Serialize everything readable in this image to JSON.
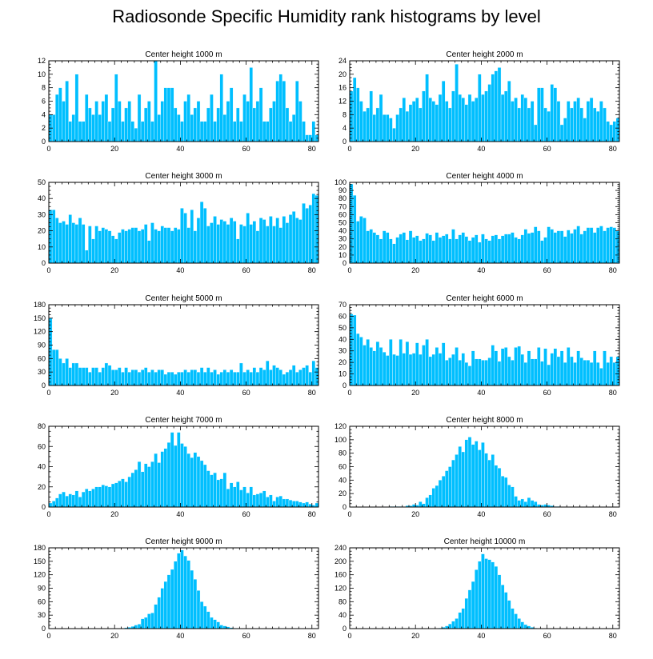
{
  "title": "Radiosonde Specific Humidity rank histograms by level",
  "bar_color": "#00BFFF",
  "chart_data": [
    {
      "type": "bar",
      "title": "Center height 1000 m",
      "x_start": 0,
      "xlim": [
        0,
        82
      ],
      "x_ticks": [
        0,
        20,
        40,
        60,
        80
      ],
      "ylim": [
        0,
        12
      ],
      "y_ticks": [
        0,
        2,
        4,
        6,
        8,
        10,
        12
      ],
      "values": [
        4,
        4,
        7,
        8,
        6,
        9,
        3,
        4,
        10,
        3,
        3,
        7,
        5,
        4,
        6,
        4,
        6,
        7,
        3,
        5,
        10,
        6,
        3,
        5,
        6,
        3,
        2,
        7,
        3,
        5,
        6,
        3,
        12,
        4,
        6,
        8,
        8,
        8,
        5,
        4,
        3,
        6,
        7,
        4,
        5,
        6,
        3,
        3,
        5,
        7,
        3,
        5,
        10,
        4,
        6,
        8,
        3,
        5,
        3,
        7,
        6,
        11,
        5,
        6,
        8,
        3,
        3,
        5,
        6,
        9,
        10,
        9,
        5,
        3,
        4,
        9,
        6,
        3,
        1,
        1,
        3,
        1
      ]
    },
    {
      "type": "bar",
      "title": "Center height 2000 m",
      "x_start": 0,
      "xlim": [
        0,
        82
      ],
      "x_ticks": [
        0,
        20,
        40,
        60,
        80
      ],
      "ylim": [
        0,
        24
      ],
      "y_ticks": [
        0,
        4,
        8,
        12,
        16,
        20,
        24
      ],
      "values": [
        15,
        19,
        16,
        12,
        9,
        10,
        15,
        8,
        10,
        14,
        8,
        8,
        7,
        4,
        8,
        10,
        13,
        9,
        11,
        12,
        13,
        10,
        15,
        20,
        13,
        12,
        11,
        14,
        18,
        12,
        10,
        15,
        23,
        14,
        13,
        11,
        14,
        12,
        13,
        20,
        14,
        15,
        17,
        20,
        21,
        22,
        14,
        15,
        18,
        12,
        13,
        10,
        14,
        13,
        10,
        12,
        5,
        16,
        16,
        10,
        9,
        17,
        16,
        12,
        5,
        7,
        12,
        10,
        12,
        13,
        10,
        7,
        12,
        13,
        10,
        9,
        12,
        10,
        6,
        5,
        6,
        7
      ]
    },
    {
      "type": "bar",
      "title": "Center height 3000 m",
      "x_start": 0,
      "xlim": [
        0,
        82
      ],
      "x_ticks": [
        0,
        20,
        40,
        60,
        80
      ],
      "ylim": [
        0,
        50
      ],
      "y_ticks": [
        0,
        10,
        20,
        30,
        40,
        50
      ],
      "values": [
        33,
        33,
        28,
        25,
        26,
        24,
        30,
        25,
        24,
        28,
        24,
        8,
        23,
        15,
        23,
        20,
        22,
        21,
        20,
        17,
        15,
        19,
        21,
        20,
        21,
        22,
        22,
        20,
        21,
        24,
        14,
        25,
        21,
        20,
        23,
        22,
        22,
        20,
        22,
        21,
        34,
        31,
        22,
        33,
        20,
        28,
        38,
        34,
        23,
        25,
        29,
        24,
        27,
        26,
        24,
        28,
        26,
        15,
        24,
        23,
        31,
        24,
        26,
        20,
        28,
        27,
        23,
        29,
        23,
        28,
        22,
        29,
        25,
        30,
        32,
        28,
        27,
        37,
        34,
        36,
        43,
        42
      ]
    },
    {
      "type": "bar",
      "title": "Center height 4000 m",
      "x_start": 0,
      "xlim": [
        0,
        82
      ],
      "x_ticks": [
        0,
        20,
        40,
        60,
        80
      ],
      "ylim": [
        0,
        100
      ],
      "y_ticks": [
        0,
        10,
        20,
        30,
        40,
        50,
        60,
        70,
        80,
        90,
        100
      ],
      "values": [
        98,
        84,
        52,
        58,
        56,
        40,
        42,
        38,
        35,
        30,
        40,
        38,
        30,
        24,
        32,
        36,
        38,
        29,
        40,
        32,
        34,
        28,
        30,
        37,
        35,
        28,
        38,
        32,
        34,
        36,
        30,
        42,
        30,
        35,
        38,
        33,
        28,
        32,
        35,
        26,
        36,
        30,
        28,
        34,
        35,
        30,
        34,
        36,
        36,
        38,
        32,
        30,
        35,
        42,
        37,
        38,
        45,
        40,
        28,
        32,
        45,
        42,
        38,
        40,
        40,
        33,
        41,
        37,
        42,
        46,
        36,
        40,
        44,
        44,
        38,
        44,
        46,
        40,
        44,
        45,
        44,
        40
      ]
    },
    {
      "type": "bar",
      "title": "Center height 5000 m",
      "x_start": 0,
      "xlim": [
        0,
        82
      ],
      "x_ticks": [
        0,
        20,
        40,
        60,
        80
      ],
      "ylim": [
        0,
        180
      ],
      "y_ticks": [
        0,
        30,
        60,
        90,
        120,
        150,
        180
      ],
      "values": [
        150,
        80,
        80,
        60,
        50,
        60,
        40,
        50,
        50,
        40,
        40,
        40,
        30,
        40,
        40,
        30,
        40,
        50,
        45,
        35,
        35,
        40,
        30,
        40,
        30,
        35,
        35,
        30,
        35,
        40,
        30,
        35,
        30,
        35,
        35,
        25,
        30,
        30,
        25,
        30,
        30,
        35,
        30,
        35,
        35,
        30,
        40,
        30,
        40,
        30,
        35,
        25,
        30,
        35,
        30,
        35,
        30,
        30,
        50,
        30,
        35,
        30,
        40,
        30,
        40,
        35,
        55,
        35,
        45,
        40,
        35,
        25,
        30,
        35,
        45,
        30,
        35,
        40,
        45,
        30,
        55,
        40
      ]
    },
    {
      "type": "bar",
      "title": "Center height 6000 m",
      "x_start": 0,
      "xlim": [
        0,
        82
      ],
      "x_ticks": [
        0,
        20,
        40,
        60,
        80
      ],
      "ylim": [
        0,
        70
      ],
      "y_ticks": [
        0,
        10,
        20,
        30,
        40,
        50,
        60,
        70
      ],
      "values": [
        62,
        61,
        45,
        42,
        35,
        40,
        33,
        30,
        38,
        33,
        29,
        26,
        40,
        27,
        26,
        40,
        28,
        38,
        27,
        28,
        37,
        27,
        35,
        40,
        25,
        27,
        33,
        28,
        37,
        22,
        24,
        27,
        33,
        22,
        28,
        20,
        17,
        30,
        23,
        23,
        22,
        22,
        24,
        35,
        30,
        21,
        32,
        33,
        25,
        22,
        33,
        34,
        27,
        20,
        30,
        23,
        23,
        33,
        21,
        32,
        18,
        28,
        32,
        25,
        30,
        20,
        33,
        25,
        20,
        30,
        24,
        22,
        22,
        20,
        30,
        20,
        15,
        30,
        20,
        25,
        20,
        25
      ]
    },
    {
      "type": "bar",
      "title": "Center height 7000 m",
      "x_start": 0,
      "xlim": [
        0,
        82
      ],
      "x_ticks": [
        0,
        20,
        40,
        60,
        80
      ],
      "ylim": [
        0,
        80
      ],
      "y_ticks": [
        0,
        20,
        40,
        60,
        80
      ],
      "values": [
        4,
        6,
        9,
        13,
        15,
        11,
        13,
        12,
        16,
        10,
        15,
        18,
        16,
        18,
        20,
        20,
        22,
        21,
        20,
        23,
        24,
        26,
        28,
        25,
        30,
        34,
        37,
        45,
        35,
        43,
        40,
        45,
        53,
        44,
        55,
        58,
        64,
        74,
        61,
        74,
        63,
        60,
        53,
        49,
        54,
        50,
        46,
        42,
        36,
        32,
        34,
        27,
        28,
        34,
        18,
        24,
        20,
        25,
        17,
        20,
        14,
        20,
        12,
        13,
        14,
        16,
        10,
        12,
        6,
        10,
        11,
        8,
        8,
        7,
        6,
        6,
        5,
        4,
        5,
        3,
        2,
        4
      ]
    },
    {
      "type": "bar",
      "title": "Center height 8000 m",
      "x_start": 0,
      "xlim": [
        0,
        82
      ],
      "x_ticks": [
        0,
        20,
        40,
        60,
        80
      ],
      "ylim": [
        0,
        120
      ],
      "y_ticks": [
        0,
        20,
        40,
        60,
        80,
        100,
        120
      ],
      "values": [
        0,
        0,
        0,
        0,
        0,
        0,
        0,
        0,
        0,
        0,
        0,
        0,
        1,
        1,
        1,
        1,
        0,
        2,
        2,
        4,
        3,
        8,
        5,
        14,
        18,
        28,
        32,
        40,
        46,
        54,
        60,
        70,
        78,
        90,
        82,
        100,
        104,
        93,
        98,
        85,
        96,
        80,
        70,
        78,
        62,
        58,
        46,
        44,
        33,
        30,
        16,
        10,
        12,
        8,
        14,
        10,
        8,
        4,
        3,
        4,
        3,
        2,
        1,
        1,
        0,
        0,
        0,
        0,
        0,
        0,
        0,
        0,
        0,
        0,
        0,
        0,
        0,
        0,
        0,
        0,
        0,
        0
      ]
    },
    {
      "type": "bar",
      "title": "Center height 9000 m",
      "x_start": 0,
      "xlim": [
        0,
        82
      ],
      "x_ticks": [
        0,
        20,
        40,
        60,
        80
      ],
      "ylim": [
        0,
        180
      ],
      "y_ticks": [
        0,
        30,
        60,
        90,
        120,
        150,
        180
      ],
      "values": [
        0,
        0,
        0,
        0,
        0,
        0,
        0,
        0,
        0,
        0,
        0,
        0,
        0,
        0,
        0,
        0,
        0,
        0,
        0,
        0,
        0,
        0,
        0,
        2,
        3,
        5,
        8,
        10,
        22,
        25,
        33,
        35,
        54,
        70,
        90,
        105,
        120,
        132,
        150,
        168,
        175,
        162,
        152,
        130,
        110,
        85,
        60,
        50,
        38,
        25,
        20,
        15,
        8,
        6,
        4,
        2,
        1,
        1,
        0,
        0,
        0,
        0,
        0,
        0,
        0,
        0,
        0,
        0,
        0,
        0,
        0,
        0,
        0,
        0,
        0,
        0,
        0,
        0,
        0,
        0,
        0,
        0
      ]
    },
    {
      "type": "bar",
      "title": "Center height 10000 m",
      "x_start": 0,
      "xlim": [
        0,
        82
      ],
      "x_ticks": [
        0,
        20,
        40,
        60,
        80
      ],
      "ylim": [
        0,
        240
      ],
      "y_ticks": [
        0,
        40,
        80,
        120,
        160,
        200,
        240
      ],
      "values": [
        0,
        0,
        0,
        0,
        0,
        0,
        0,
        0,
        0,
        0,
        0,
        0,
        0,
        0,
        0,
        0,
        0,
        0,
        0,
        0,
        0,
        0,
        0,
        0,
        0,
        0,
        0,
        2,
        4,
        8,
        14,
        22,
        30,
        48,
        60,
        90,
        115,
        140,
        175,
        200,
        222,
        208,
        205,
        198,
        185,
        160,
        130,
        108,
        84,
        60,
        44,
        30,
        20,
        12,
        8,
        4,
        2,
        1,
        0,
        0,
        0,
        0,
        0,
        0,
        0,
        0,
        0,
        0,
        0,
        0,
        0,
        0,
        0,
        0,
        0,
        0,
        0,
        0,
        0,
        0,
        0,
        0
      ]
    }
  ]
}
